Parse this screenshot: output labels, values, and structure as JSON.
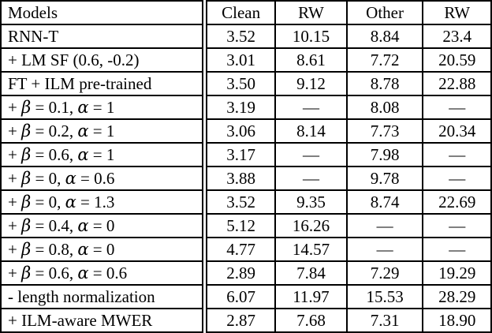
{
  "page": {
    "background_color": "#ffffff",
    "text_color": "#000000",
    "border_color": "#000000"
  },
  "chart_data": {
    "type": "table",
    "title": "",
    "columns": [
      "Models",
      "Clean",
      "RW",
      "Other",
      "RW"
    ],
    "rows": [
      {
        "model": "RNN-T",
        "values": [
          "3.52",
          "10.15",
          "8.84",
          "23.4"
        ]
      },
      {
        "model": "+ LM SF (0.6, -0.2)",
        "values": [
          "3.01",
          "8.61",
          "7.72",
          "20.59"
        ]
      },
      {
        "model": "FT + ILM pre-trained",
        "values": [
          "3.50",
          "9.12",
          "8.78",
          "22.88"
        ]
      },
      {
        "model": "+ β = 0.1, α = 1",
        "values": [
          "3.19",
          "—",
          "8.08",
          "—"
        ]
      },
      {
        "model": "+ β = 0.2, α = 1",
        "values": [
          "3.06",
          "8.14",
          "7.73",
          "20.34"
        ]
      },
      {
        "model": "+ β = 0.6, α = 1",
        "values": [
          "3.17",
          "—",
          "7.98",
          "—"
        ]
      },
      {
        "model": "+ β = 0, α = 0.6",
        "values": [
          "3.88",
          "—",
          "9.78",
          "—"
        ]
      },
      {
        "model": "+ β = 0, α = 1.3",
        "values": [
          "3.52",
          "9.35",
          "8.74",
          "22.69"
        ]
      },
      {
        "model": "+ β = 0.4, α = 0",
        "values": [
          "5.12",
          "16.26",
          "—",
          "—"
        ]
      },
      {
        "model": "+ β = 0.8, α = 0",
        "values": [
          "4.77",
          "14.57",
          "—",
          "—"
        ]
      },
      {
        "model": "+ β = 0.6, α = 0.6",
        "values": [
          "2.89",
          "7.84",
          "7.29",
          "19.29"
        ]
      },
      {
        "model": "- length normalization",
        "values": [
          "6.07",
          "11.97",
          "15.53",
          "28.29"
        ]
      },
      {
        "model": "+ ILM-aware MWER",
        "values": [
          "2.87",
          "7.68",
          "7.31",
          "18.90"
        ]
      }
    ],
    "empty_marker": "—"
  }
}
